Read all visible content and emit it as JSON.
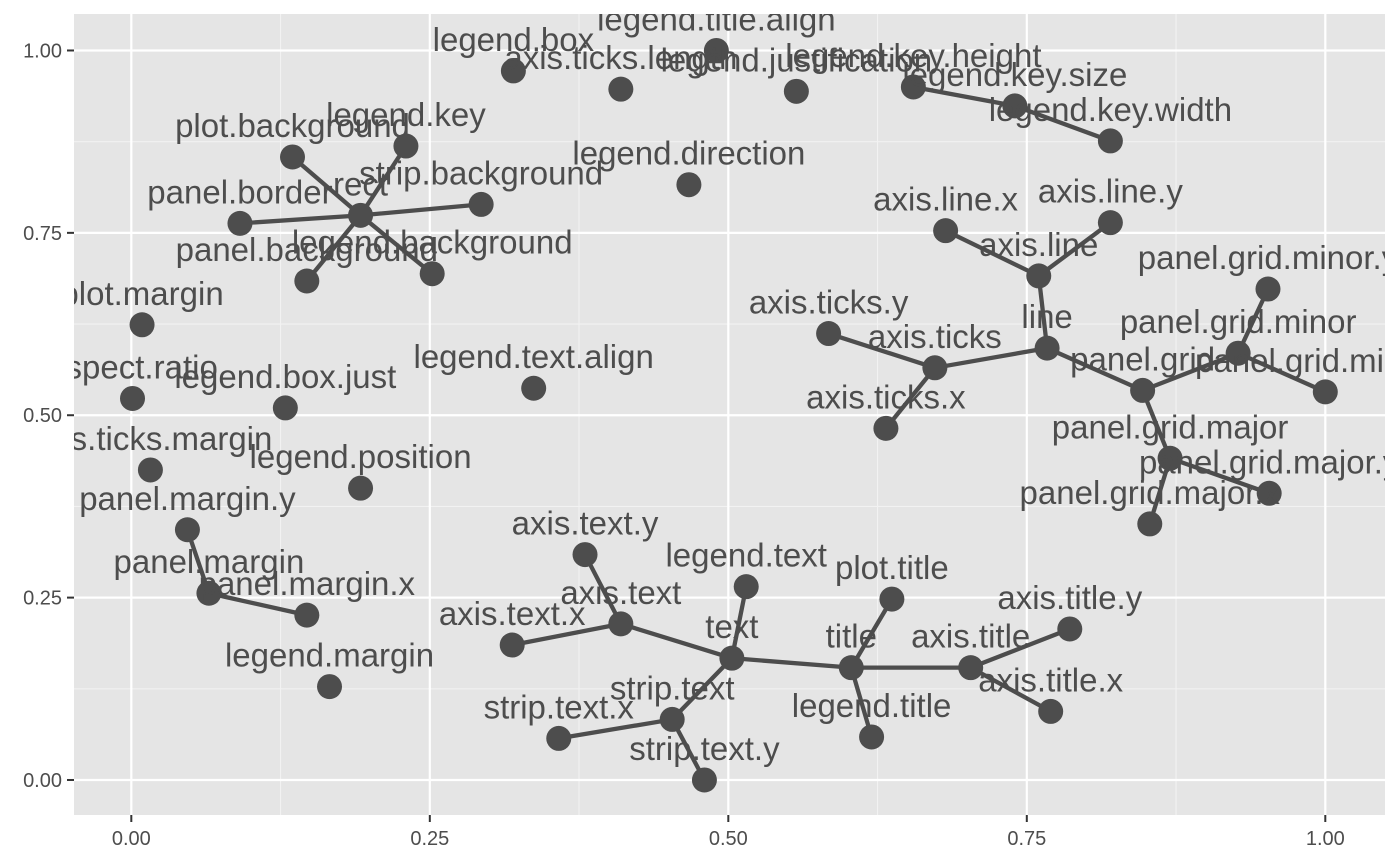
{
  "chart_data": {
    "type": "scatter",
    "title": "",
    "xlabel": "",
    "ylabel": "",
    "xlim": [
      -0.048,
      1.05
    ],
    "ylim": [
      -0.048,
      1.05
    ],
    "x_ticks": [
      0,
      0.25,
      0.5,
      0.75,
      1
    ],
    "x_tick_labels": [
      "0.00",
      "0.25",
      "0.50",
      "0.75",
      "1.00"
    ],
    "y_ticks": [
      0,
      0.25,
      0.5,
      0.75,
      1
    ],
    "y_tick_labels": [
      "0.00",
      "0.25",
      "0.50",
      "0.75",
      "1.00"
    ],
    "grid": true,
    "background": "#e5e5e5",
    "point_color": "#4d4d4d",
    "edge_color": "#4d4d4d",
    "nodes": [
      {
        "id": "legend.title.align",
        "x": 0.49,
        "y": 1.0
      },
      {
        "id": "legend.box",
        "x": 0.32,
        "y": 0.972
      },
      {
        "id": "axis.ticks.length",
        "x": 0.41,
        "y": 0.947
      },
      {
        "id": "legend.justification",
        "x": 0.557,
        "y": 0.944
      },
      {
        "id": "legend.key.height",
        "x": 0.655,
        "y": 0.95
      },
      {
        "id": "legend.key.size",
        "x": 0.74,
        "y": 0.924
      },
      {
        "id": "legend.key.width",
        "x": 0.82,
        "y": 0.876
      },
      {
        "id": "legend.key",
        "x": 0.23,
        "y": 0.869
      },
      {
        "id": "plot.background",
        "x": 0.135,
        "y": 0.854
      },
      {
        "id": "rect",
        "x": 0.192,
        "y": 0.774
      },
      {
        "id": "strip.background",
        "x": 0.293,
        "y": 0.789
      },
      {
        "id": "panel.border",
        "x": 0.091,
        "y": 0.763
      },
      {
        "id": "panel.background",
        "x": 0.147,
        "y": 0.684
      },
      {
        "id": "legend.background",
        "x": 0.252,
        "y": 0.694
      },
      {
        "id": "legend.direction",
        "x": 0.467,
        "y": 0.816
      },
      {
        "id": "axis.line.x",
        "x": 0.682,
        "y": 0.753
      },
      {
        "id": "axis.line.y",
        "x": 0.82,
        "y": 0.764
      },
      {
        "id": "axis.line",
        "x": 0.76,
        "y": 0.691
      },
      {
        "id": "plot.margin",
        "x": 0.009,
        "y": 0.624
      },
      {
        "id": "aspect.ratio",
        "x": 0.001,
        "y": 0.523
      },
      {
        "id": "legend.box.just",
        "x": 0.129,
        "y": 0.51
      },
      {
        "id": "legend.text.align",
        "x": 0.337,
        "y": 0.537
      },
      {
        "id": "axis.ticks.y",
        "x": 0.584,
        "y": 0.612
      },
      {
        "id": "axis.ticks",
        "x": 0.673,
        "y": 0.565
      },
      {
        "id": "axis.ticks.x",
        "x": 0.632,
        "y": 0.482
      },
      {
        "id": "line",
        "x": 0.767,
        "y": 0.592
      },
      {
        "id": "panel.grid",
        "x": 0.847,
        "y": 0.534
      },
      {
        "id": "panel.grid.minor",
        "x": 0.927,
        "y": 0.585
      },
      {
        "id": "panel.grid.minor.y",
        "x": 0.952,
        "y": 0.673
      },
      {
        "id": "panel.grid.minor.x",
        "x": 1.0,
        "y": 0.532
      },
      {
        "id": "panel.grid.major",
        "x": 0.87,
        "y": 0.441
      },
      {
        "id": "panel.grid.major.y",
        "x": 0.953,
        "y": 0.393
      },
      {
        "id": "panel.grid.major.x",
        "x": 0.853,
        "y": 0.351
      },
      {
        "id": "axis.ticks.margin",
        "x": 0.016,
        "y": 0.425
      },
      {
        "id": "legend.position",
        "x": 0.192,
        "y": 0.4
      },
      {
        "id": "panel.margin.y",
        "x": 0.047,
        "y": 0.343
      },
      {
        "id": "panel.margin",
        "x": 0.065,
        "y": 0.256
      },
      {
        "id": "panel.margin.x",
        "x": 0.147,
        "y": 0.226
      },
      {
        "id": "legend.margin",
        "x": 0.166,
        "y": 0.128
      },
      {
        "id": "axis.text.y",
        "x": 0.38,
        "y": 0.309
      },
      {
        "id": "legend.text",
        "x": 0.515,
        "y": 0.265
      },
      {
        "id": "axis.text",
        "x": 0.41,
        "y": 0.214
      },
      {
        "id": "axis.text.x",
        "x": 0.319,
        "y": 0.185
      },
      {
        "id": "text",
        "x": 0.503,
        "y": 0.167
      },
      {
        "id": "plot.title",
        "x": 0.637,
        "y": 0.248
      },
      {
        "id": "title",
        "x": 0.603,
        "y": 0.154
      },
      {
        "id": "axis.title",
        "x": 0.703,
        "y": 0.154
      },
      {
        "id": "axis.title.y",
        "x": 0.786,
        "y": 0.207
      },
      {
        "id": "axis.title.x",
        "x": 0.77,
        "y": 0.094
      },
      {
        "id": "legend.title",
        "x": 0.62,
        "y": 0.059
      },
      {
        "id": "strip.text",
        "x": 0.453,
        "y": 0.083
      },
      {
        "id": "strip.text.x",
        "x": 0.358,
        "y": 0.057
      },
      {
        "id": "strip.text.y",
        "x": 0.48,
        "y": 0.0
      }
    ],
    "edges": [
      [
        "legend.key.height",
        "legend.key.size"
      ],
      [
        "legend.key.size",
        "legend.key.width"
      ],
      [
        "rect",
        "plot.background"
      ],
      [
        "rect",
        "legend.key"
      ],
      [
        "rect",
        "strip.background"
      ],
      [
        "rect",
        "panel.border"
      ],
      [
        "rect",
        "panel.background"
      ],
      [
        "rect",
        "legend.background"
      ],
      [
        "axis.line",
        "axis.line.x"
      ],
      [
        "axis.line",
        "axis.line.y"
      ],
      [
        "axis.line",
        "line"
      ],
      [
        "axis.ticks",
        "axis.ticks.y"
      ],
      [
        "axis.ticks",
        "axis.ticks.x"
      ],
      [
        "axis.ticks",
        "line"
      ],
      [
        "line",
        "panel.grid"
      ],
      [
        "panel.grid",
        "panel.grid.minor"
      ],
      [
        "panel.grid.minor",
        "panel.grid.minor.y"
      ],
      [
        "panel.grid.minor",
        "panel.grid.minor.x"
      ],
      [
        "panel.grid",
        "panel.grid.major"
      ],
      [
        "panel.grid.major",
        "panel.grid.major.y"
      ],
      [
        "panel.grid.major",
        "panel.grid.major.x"
      ],
      [
        "panel.margin.y",
        "panel.margin"
      ],
      [
        "panel.margin",
        "panel.margin.x"
      ],
      [
        "text",
        "axis.text"
      ],
      [
        "axis.text",
        "axis.text.y"
      ],
      [
        "axis.text",
        "axis.text.x"
      ],
      [
        "text",
        "legend.text"
      ],
      [
        "text",
        "strip.text"
      ],
      [
        "strip.text",
        "strip.text.x"
      ],
      [
        "strip.text",
        "strip.text.y"
      ],
      [
        "text",
        "title"
      ],
      [
        "title",
        "plot.title"
      ],
      [
        "title",
        "legend.title"
      ],
      [
        "title",
        "axis.title"
      ],
      [
        "axis.title",
        "axis.title.y"
      ],
      [
        "axis.title",
        "axis.title.x"
      ]
    ]
  }
}
